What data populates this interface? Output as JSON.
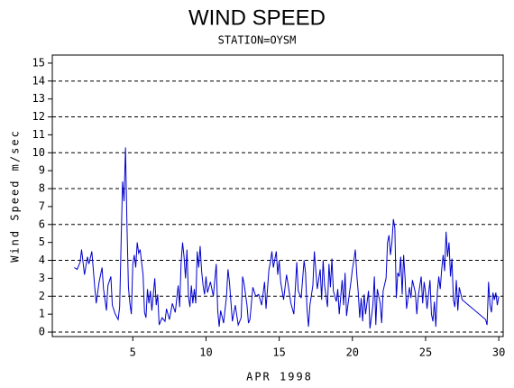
{
  "chart_data": {
    "type": "line",
    "title": "WIND SPEED",
    "subtitle": "STATION=OYSM",
    "y_label": "Wind Speed m/sec",
    "x_label": "APR 1998",
    "color": "#0000cc",
    "xlim": [
      -0.5,
      30.3
    ],
    "xticks": [
      5,
      10,
      15,
      20,
      25,
      30
    ],
    "ylim": [
      -0.25,
      15.45
    ],
    "yticks": [
      0,
      1,
      2,
      3,
      4,
      5,
      6,
      7,
      8,
      9,
      10,
      11,
      12,
      13,
      14,
      15
    ],
    "grid_lines": [
      0,
      2,
      4,
      6,
      8,
      10,
      12,
      14
    ],
    "x": [
      1.0,
      1.2,
      1.4,
      1.5,
      1.7,
      1.9,
      2.0,
      2.2,
      2.4,
      2.5,
      2.7,
      2.9,
      3.0,
      3.2,
      3.3,
      3.5,
      3.6,
      3.8,
      4.0,
      4.1,
      4.2,
      4.3,
      4.4,
      4.5,
      4.6,
      4.7,
      4.8,
      4.9,
      5.0,
      5.1,
      5.2,
      5.3,
      5.4,
      5.5,
      5.7,
      5.8,
      5.9,
      6.0,
      6.1,
      6.2,
      6.3,
      6.5,
      6.6,
      6.7,
      6.8,
      7.0,
      7.2,
      7.3,
      7.5,
      7.7,
      7.9,
      8.1,
      8.2,
      8.3,
      8.4,
      8.5,
      8.6,
      8.7,
      8.8,
      8.9,
      9.0,
      9.1,
      9.2,
      9.3,
      9.4,
      9.5,
      9.6,
      9.7,
      9.8,
      9.9,
      10.0,
      10.1,
      10.3,
      10.5,
      10.7,
      10.8,
      10.9,
      11.0,
      11.2,
      11.4,
      11.5,
      11.6,
      11.8,
      12.0,
      12.2,
      12.4,
      12.5,
      12.6,
      12.8,
      12.9,
      13.0,
      13.2,
      13.4,
      13.6,
      13.8,
      14.0,
      14.1,
      14.3,
      14.4,
      14.5,
      14.6,
      14.8,
      14.9,
      15.0,
      15.1,
      15.3,
      15.5,
      15.6,
      15.8,
      16.0,
      16.1,
      16.2,
      16.3,
      16.5,
      16.7,
      16.8,
      16.9,
      17.0,
      17.1,
      17.3,
      17.4,
      17.6,
      17.8,
      17.9,
      18.0,
      18.1,
      18.3,
      18.4,
      18.5,
      18.6,
      18.7,
      18.9,
      19.0,
      19.1,
      19.3,
      19.4,
      19.5,
      19.6,
      19.8,
      19.9,
      20.0,
      20.1,
      20.2,
      20.3,
      20.4,
      20.5,
      20.6,
      20.7,
      20.8,
      20.9,
      21.1,
      21.2,
      21.4,
      21.5,
      21.6,
      21.7,
      21.9,
      22.0,
      22.1,
      22.3,
      22.4,
      22.5,
      22.6,
      22.7,
      22.8,
      22.9,
      23.0,
      23.1,
      23.2,
      23.3,
      23.4,
      23.5,
      23.6,
      23.7,
      23.9,
      24.0,
      24.1,
      24.3,
      24.4,
      24.5,
      24.7,
      24.8,
      24.9,
      25.0,
      25.1,
      25.3,
      25.4,
      25.5,
      25.6,
      25.7,
      25.8,
      25.9,
      26.0,
      26.1,
      26.2,
      26.3,
      26.4,
      26.5,
      26.6,
      26.7,
      26.8,
      26.9,
      27.0,
      27.1,
      27.2,
      27.3,
      27.5,
      29.1,
      29.2,
      29.3,
      29.4,
      29.5,
      29.6,
      29.7,
      29.8,
      29.9,
      30.0
    ],
    "values": [
      3.6,
      3.5,
      3.9,
      4.6,
      3.2,
      4.2,
      3.8,
      4.5,
      2.5,
      1.6,
      2.8,
      3.6,
      2.4,
      1.2,
      2.6,
      3.1,
      1.5,
      1.0,
      0.7,
      1.4,
      5.0,
      8.4,
      7.3,
      10.3,
      6.0,
      2.5,
      1.6,
      1.0,
      3.8,
      4.3,
      3.6,
      5.0,
      4.4,
      4.6,
      3.2,
      1.1,
      0.8,
      2.4,
      1.6,
      2.3,
      1.2,
      3.0,
      1.5,
      2.1,
      0.4,
      0.8,
      0.6,
      1.3,
      0.7,
      1.6,
      1.1,
      2.6,
      1.4,
      3.9,
      5.0,
      4.2,
      3.0,
      4.6,
      2.0,
      1.4,
      2.6,
      1.6,
      2.4,
      1.6,
      4.5,
      3.6,
      4.8,
      3.4,
      2.6,
      2.1,
      3.1,
      2.2,
      2.8,
      2.0,
      3.8,
      1.2,
      0.3,
      1.2,
      0.5,
      2.0,
      3.5,
      2.8,
      0.6,
      1.5,
      0.4,
      0.8,
      3.1,
      2.7,
      1.5,
      0.5,
      0.7,
      2.5,
      2.0,
      2.1,
      1.5,
      2.8,
      1.3,
      3.5,
      3.9,
      4.5,
      3.6,
      4.5,
      3.2,
      4.0,
      2.8,
      1.8,
      3.2,
      2.7,
      1.6,
      1.0,
      2.4,
      3.9,
      2.3,
      1.9,
      4.0,
      3.3,
      1.3,
      0.3,
      1.5,
      2.6,
      4.5,
      2.4,
      3.5,
      1.8,
      4.0,
      2.6,
      1.4,
      3.8,
      2.5,
      4.1,
      2.3,
      1.7,
      2.4,
      1.0,
      2.9,
      1.5,
      3.3,
      0.9,
      2.2,
      2.8,
      3.5,
      4.0,
      4.6,
      3.2,
      2.2,
      0.8,
      1.9,
      0.6,
      2.1,
      1.0,
      2.3,
      0.2,
      1.5,
      3.1,
      0.4,
      2.4,
      1.6,
      0.5,
      2.3,
      3.0,
      5.0,
      5.4,
      4.3,
      5.0,
      6.3,
      5.8,
      1.9,
      3.3,
      3.1,
      4.2,
      2.1,
      4.3,
      3.0,
      1.3,
      2.5,
      1.9,
      2.9,
      2.2,
      1.0,
      2.0,
      3.1,
      1.6,
      2.8,
      2.2,
      1.3,
      2.9,
      1.0,
      0.6,
      1.7,
      0.3,
      2.2,
      3.1,
      2.4,
      3.5,
      4.3,
      3.4,
      5.6,
      4.2,
      5.0,
      3.1,
      4.1,
      1.8,
      1.4,
      2.9,
      1.2,
      2.5,
      1.8,
      0.7,
      0.4,
      2.8,
      1.5,
      1.1,
      2.2,
      1.8,
      2.2,
      1.5,
      2.0
    ]
  }
}
